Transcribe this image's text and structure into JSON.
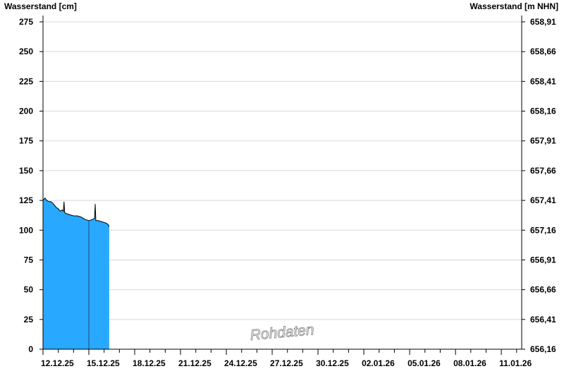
{
  "chart_data": {
    "type": "area",
    "ylabel_left": "Wasserstand [cm]",
    "ylabel_right": "Wasserstand [m NHN]",
    "watermark": "Rohdaten",
    "ylim": [
      0,
      275
    ],
    "yticks": [
      0,
      25,
      50,
      75,
      100,
      125,
      150,
      175,
      200,
      225,
      250,
      275
    ],
    "yticks_right": [
      "656,16",
      "656,41",
      "656,66",
      "656,91",
      "657,16",
      "657,41",
      "657,66",
      "657,91",
      "658,16",
      "658,41",
      "658,66",
      "658,91"
    ],
    "xlim": [
      "2025-12-12T00:00",
      "2026-01-12T08:00"
    ],
    "xticks": [
      "12.12.25",
      "15.12.25",
      "18.12.25",
      "21.12.25",
      "24.12.25",
      "27.12.25",
      "30.12.25",
      "02.01.26",
      "05.01.26",
      "08.01.26",
      "11.01.26"
    ],
    "grid": "horizontal",
    "marker_line": "2025-12-15T00:00",
    "colors": {
      "fill": "#29a8ff",
      "line": "#000000",
      "grid": "#d8d8d8",
      "marker": "#1e4f7a"
    },
    "points": [
      [
        "2025-12-12T00:00",
        125
      ],
      [
        "2025-12-12T03:00",
        127
      ],
      [
        "2025-12-12T06:00",
        125
      ],
      [
        "2025-12-12T09:00",
        124
      ],
      [
        "2025-12-12T12:00",
        124
      ],
      [
        "2025-12-12T15:00",
        123
      ],
      [
        "2025-12-12T18:00",
        121
      ],
      [
        "2025-12-12T21:00",
        119
      ],
      [
        "2025-12-13T00:00",
        118
      ],
      [
        "2025-12-13T03:00",
        116
      ],
      [
        "2025-12-13T06:00",
        117
      ],
      [
        "2025-12-13T08:00",
        116
      ],
      [
        "2025-12-13T09:00",
        124
      ],
      [
        "2025-12-13T10:00",
        115
      ],
      [
        "2025-12-13T12:00",
        114
      ],
      [
        "2025-12-13T18:00",
        113
      ],
      [
        "2025-12-14T00:00",
        112
      ],
      [
        "2025-12-14T06:00",
        112
      ],
      [
        "2025-12-14T12:00",
        111
      ],
      [
        "2025-12-14T18:00",
        109
      ],
      [
        "2025-12-15T00:00",
        108
      ],
      [
        "2025-12-15T06:00",
        109
      ],
      [
        "2025-12-15T09:00",
        110
      ],
      [
        "2025-12-15T10:00",
        122
      ],
      [
        "2025-12-15T11:00",
        108
      ],
      [
        "2025-12-15T15:00",
        108
      ],
      [
        "2025-12-15T21:00",
        107
      ],
      [
        "2025-12-16T03:00",
        106
      ],
      [
        "2025-12-16T06:00",
        105
      ],
      [
        "2025-12-16T08:00",
        103
      ]
    ]
  }
}
